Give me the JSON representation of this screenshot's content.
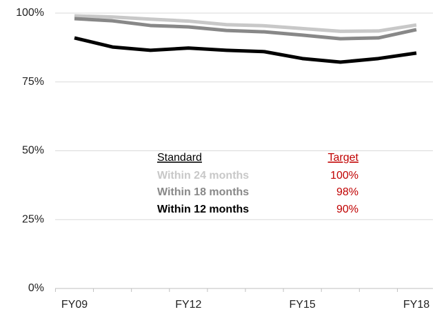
{
  "chart_data": {
    "type": "line",
    "categories": [
      "FY09",
      null,
      null,
      "FY12",
      null,
      null,
      "FY15",
      null,
      null,
      "FY18"
    ],
    "series": [
      {
        "name": "Within 24 months",
        "color": "#c8c8c8",
        "values": [
          99,
          98.6,
          97.8,
          97.1,
          95.8,
          95.4,
          94.4,
          93.4,
          93.5,
          95.7
        ]
      },
      {
        "name": "Within 18 months",
        "color": "#888888",
        "values": [
          98,
          97.2,
          95.5,
          95,
          93.7,
          93.2,
          92,
          90.7,
          91,
          94
        ]
      },
      {
        "name": "Within 12 months",
        "color": "#000000",
        "values": [
          91,
          87.7,
          86.5,
          87.3,
          86.5,
          86,
          83.5,
          82.2,
          83.5,
          85.5
        ]
      }
    ],
    "ylim": [
      0,
      100
    ],
    "yticks": [
      {
        "value": 0,
        "label": "0%"
      },
      {
        "value": 25,
        "label": "25%"
      },
      {
        "value": 50,
        "label": "50%"
      },
      {
        "value": 75,
        "label": "75%"
      },
      {
        "value": 100,
        "label": "100%"
      }
    ],
    "grid": true,
    "legend_table": {
      "headers": [
        "Standard",
        "Target"
      ],
      "targets": [
        "100%",
        "98%",
        "90%"
      ],
      "target_color": "#c00000"
    }
  }
}
